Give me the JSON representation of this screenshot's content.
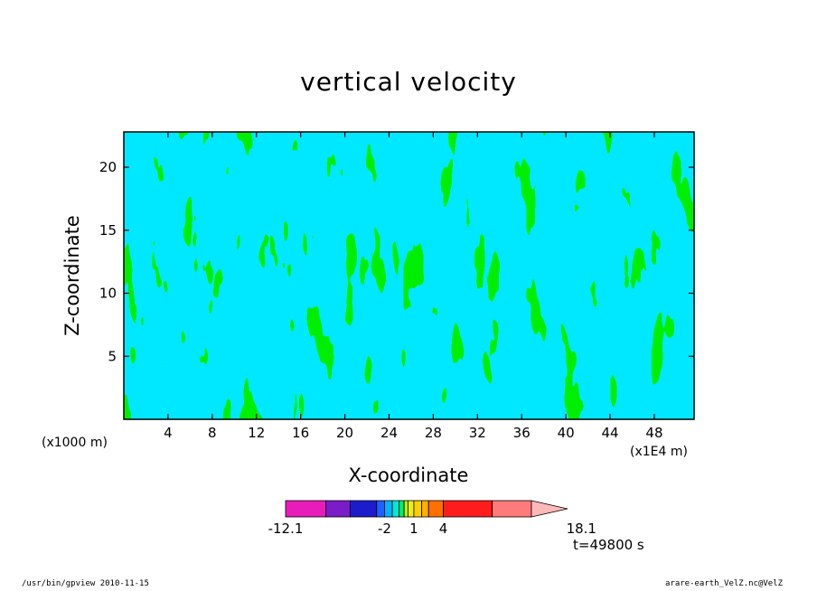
{
  "chart_data": {
    "type": "heatmap",
    "title": "vertical velocity",
    "xlabel": "X-coordinate",
    "ylabel": "Z-coordinate",
    "x_unit_left": "(x1000 m)",
    "x_unit_right": "(x1E4 m)",
    "xlim": [
      0,
      51.6
    ],
    "ylim": [
      0,
      22.8
    ],
    "x_ticks": [
      "4",
      "8",
      "12",
      "16",
      "20",
      "24",
      "28",
      "32",
      "36",
      "40",
      "44",
      "48"
    ],
    "x_tick_values": [
      4,
      8,
      12,
      16,
      20,
      24,
      28,
      32,
      36,
      40,
      44,
      48
    ],
    "y_ticks": [
      "5",
      "10",
      "15",
      "20"
    ],
    "y_tick_values": [
      5,
      10,
      15,
      20
    ],
    "field_colors": {
      "negative_region": "#00e8ff",
      "positive_region": "#00ee00"
    },
    "colorbar": {
      "labels": [
        "-12.1",
        "-2",
        "1",
        "4",
        "18.1"
      ],
      "label_values": [
        -12.1,
        -2,
        1,
        4,
        18.1
      ],
      "levels": [
        -12.1,
        -8,
        -5.5,
        -2.8,
        -2,
        -1.2,
        -0.5,
        0,
        0.4,
        1,
        1.8,
        2.5,
        4,
        9,
        13,
        18.1
      ],
      "colors": [
        "#e81cb8",
        "#7a1cc8",
        "#1c1ccc",
        "#1c60ff",
        "#00b4ff",
        "#00e8d8",
        "#00ee66",
        "#b8f000",
        "#f0f000",
        "#ffd000",
        "#ffb000",
        "#ff7000",
        "#ff1c1c",
        "#ff7a7a",
        "#ffb8b8"
      ]
    },
    "time_label": "t=49800 s"
  },
  "footer": {
    "left": "/usr/bin/gpview   2010-11-15",
    "right": "arare-earth_VelZ.nc@VelZ"
  }
}
